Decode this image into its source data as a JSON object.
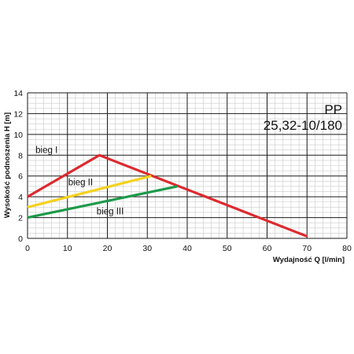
{
  "chart_data": {
    "type": "line",
    "title_line1": "PP",
    "title_line2": "25,32-10/180",
    "xlabel": "Wydajność Q [l/min]",
    "ylabel": "Wysokość podnoszenia H [m]",
    "xlim": [
      0,
      80
    ],
    "ylim": [
      0,
      14
    ],
    "xticks": [
      0,
      10,
      20,
      30,
      40,
      50,
      60,
      70,
      80
    ],
    "yticks": [
      0,
      2,
      4,
      6,
      8,
      10,
      12,
      14
    ],
    "grid": true,
    "series": [
      {
        "name": "bieg I",
        "color": "#dd2a2f",
        "points": [
          [
            0,
            4
          ],
          [
            18,
            8
          ],
          [
            70,
            0.2
          ]
        ]
      },
      {
        "name": "bieg II",
        "color": "#f4d21f",
        "points": [
          [
            0,
            3
          ],
          [
            31,
            6
          ]
        ]
      },
      {
        "name": "bieg III",
        "color": "#1e9a4a",
        "points": [
          [
            0,
            2
          ],
          [
            37.5,
            5
          ]
        ]
      }
    ]
  }
}
